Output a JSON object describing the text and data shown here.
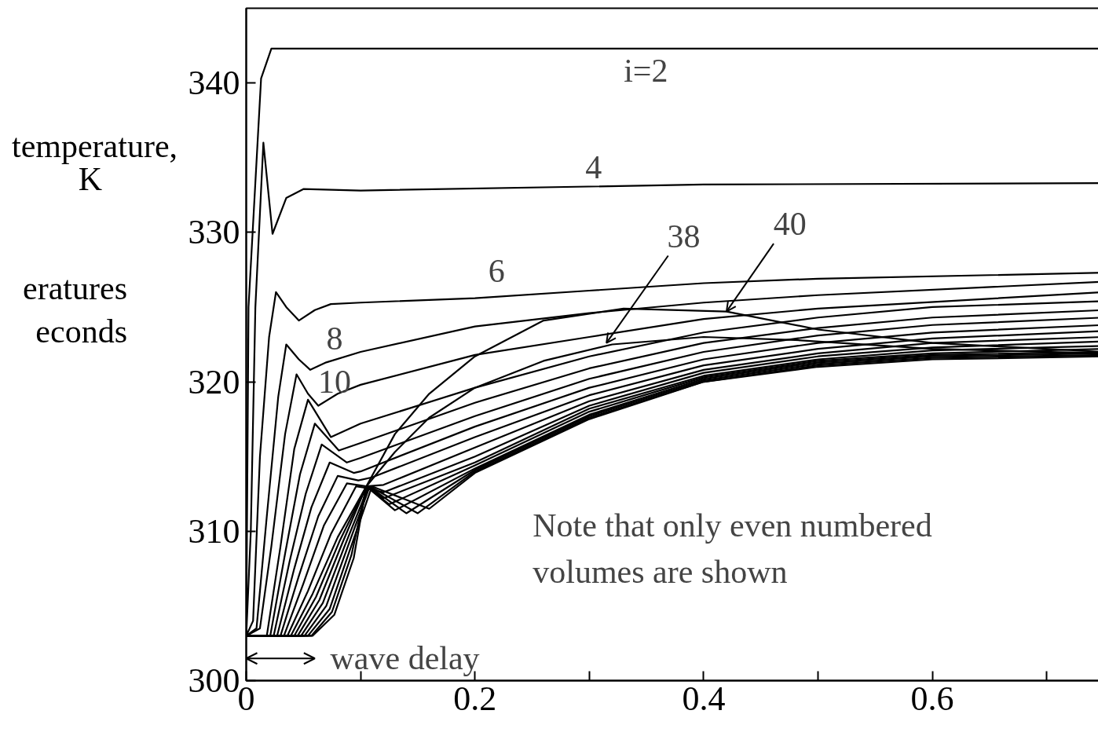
{
  "chart_data": {
    "type": "line",
    "ylabel": "temperature,\nK",
    "xlim": [
      0,
      0.75
    ],
    "ylim": [
      300,
      345
    ],
    "xticks": [
      0,
      {
        "value": 0.1,
        "label": null
      },
      0.2,
      {
        "value": 0.3,
        "label": null
      },
      0.4,
      {
        "value": 0.5,
        "label": null
      },
      0.6,
      {
        "value": 0.7,
        "label": null
      }
    ],
    "yticks": [
      300,
      310,
      320,
      330,
      340
    ],
    "grid": false,
    "annotations": [
      "Note that only even numbered\nvolumes are shown",
      "eratures\neconds",
      "i=2",
      "4",
      "6",
      "8",
      "10",
      {
        "text": "38",
        "x": 0.315,
        "y": 322.6
      },
      {
        "text": "40",
        "x": 0.42,
        "y": 324.7
      },
      "wave delay"
    ],
    "series": [
      {
        "color": "#000000",
        "x": [
          0,
          0.002,
          0.013,
          0.022,
          0.75
        ],
        "values": [
          303,
          325,
          340.3,
          342.3,
          342.3
        ]
      },
      {
        "color": "#000000",
        "x": [
          0,
          0.004,
          0.008,
          0.015,
          0.023,
          0.035,
          0.05,
          0.1,
          0.4,
          0.75
        ],
        "values": [
          303,
          310,
          325,
          336,
          329.9,
          332.3,
          332.9,
          332.8,
          333.2,
          333.3
        ]
      },
      {
        "color": "#000000",
        "x": [
          0,
          0.006,
          0.012,
          0.02,
          0.026,
          0.035,
          0.046,
          0.06,
          0.074,
          0.1,
          0.2,
          0.3,
          0.4,
          0.5,
          0.75
        ],
        "values": [
          303,
          304,
          315,
          323,
          326,
          325,
          324.1,
          324.8,
          325.2,
          325.3,
          325.6,
          326.1,
          326.6,
          326.9,
          327.3
        ]
      },
      {
        "color": "#000000",
        "x": [
          0,
          0.009,
          0.018,
          0.028,
          0.035,
          0.046,
          0.056,
          0.07,
          0.1,
          0.2,
          0.3,
          0.4,
          0.5,
          0.75
        ],
        "values": [
          303,
          303.5,
          311,
          319,
          322.5,
          321.5,
          320.8,
          321.3,
          322,
          323.7,
          324.6,
          325.3,
          325.8,
          326.7
        ]
      },
      {
        "color": "#000000",
        "x": [
          0,
          0.012,
          0.022,
          0.034,
          0.044,
          0.054,
          0.063,
          0.08,
          0.1,
          0.2,
          0.3,
          0.4,
          0.5,
          0.75
        ],
        "values": [
          303,
          303.5,
          309,
          316.5,
          320.5,
          319.2,
          318.4,
          319.2,
          319.8,
          321.8,
          323,
          324.2,
          324.9,
          326.0
        ]
      },
      {
        "color": "#000000",
        "x": [
          0,
          0.018,
          0.03,
          0.042,
          0.054,
          0.074,
          0.1,
          0.2,
          0.3,
          0.4,
          0.5,
          0.6,
          0.75
        ],
        "values": [
          303,
          303,
          309,
          315.5,
          318.8,
          316.3,
          317.2,
          319.6,
          321.7,
          323.3,
          324.3,
          325.0,
          325.4
        ]
      },
      {
        "color": "#000000",
        "x": [
          0,
          0.021,
          0.034,
          0.047,
          0.06,
          0.081,
          0.1,
          0.2,
          0.3,
          0.4,
          0.5,
          0.6,
          0.75
        ],
        "values": [
          303,
          303,
          308.5,
          313.8,
          317.2,
          315.4,
          315.9,
          318.6,
          320.9,
          322.6,
          323.6,
          324.3,
          324.8
        ]
      },
      {
        "color": "#000000",
        "x": [
          0,
          0.024,
          0.038,
          0.052,
          0.066,
          0.088,
          0.1,
          0.2,
          0.3,
          0.4,
          0.5,
          0.6,
          0.75
        ],
        "values": [
          303,
          303,
          308,
          312.5,
          315.8,
          314.6,
          314.9,
          317.7,
          320.2,
          322.0,
          323.1,
          323.8,
          324.3
        ]
      },
      {
        "color": "#000000",
        "x": [
          0,
          0.027,
          0.042,
          0.057,
          0.073,
          0.094,
          0.1,
          0.2,
          0.3,
          0.4,
          0.5,
          0.6,
          0.75
        ],
        "values": [
          303,
          303,
          307.5,
          311.6,
          314.6,
          313.9,
          314.0,
          317.0,
          319.6,
          321.5,
          322.6,
          323.3,
          323.8
        ]
      },
      {
        "color": "#000000",
        "x": [
          0,
          0.03,
          0.046,
          0.063,
          0.08,
          0.098,
          0.11,
          0.2,
          0.3,
          0.4,
          0.5,
          0.6,
          0.75
        ],
        "values": [
          303,
          303,
          307,
          311,
          313.7,
          313.4,
          313.6,
          316.3,
          319.1,
          321.1,
          322.2,
          322.9,
          323.4
        ]
      },
      {
        "color": "#000000",
        "x": [
          0,
          0.033,
          0.05,
          0.068,
          0.088,
          0.105,
          0.12,
          0.2,
          0.3,
          0.4,
          0.5,
          0.6,
          0.75
        ],
        "values": [
          303,
          303,
          306.5,
          310.4,
          313.2,
          313,
          313.1,
          315.6,
          318.7,
          320.8,
          321.9,
          322.6,
          323.0
        ]
      },
      {
        "color": "#000000",
        "x": [
          0,
          0.036,
          0.054,
          0.074,
          0.096,
          0.105,
          0.12,
          0.2,
          0.3,
          0.4,
          0.5,
          0.6,
          0.75
        ],
        "values": [
          303,
          303,
          306,
          309.8,
          313.0,
          312.9,
          312.6,
          315.0,
          318.4,
          320.6,
          321.7,
          322.3,
          322.7
        ]
      },
      {
        "color": "#000000",
        "x": [
          0,
          0.039,
          0.058,
          0.08,
          0.105,
          0.12,
          0.2,
          0.3,
          0.4,
          0.5,
          0.6,
          0.75
        ],
        "values": [
          303,
          303,
          305.8,
          309.6,
          313,
          312.2,
          314.6,
          318.2,
          320.4,
          321.5,
          322.1,
          322.4
        ]
      },
      {
        "color": "#000000",
        "x": [
          0,
          0.042,
          0.061,
          0.082,
          0.105,
          0.125,
          0.2,
          0.3,
          0.4,
          0.5,
          0.6,
          0.75
        ],
        "values": [
          303,
          303,
          305.6,
          309.4,
          313,
          311.8,
          314.4,
          318.0,
          320.3,
          321.4,
          321.9,
          322.2
        ]
      },
      {
        "color": "#000000",
        "x": [
          0,
          0.045,
          0.064,
          0.084,
          0.105,
          0.13,
          0.2,
          0.3,
          0.4,
          0.5,
          0.6,
          0.75
        ],
        "values": [
          303,
          303,
          305.4,
          309.2,
          313,
          311.4,
          314.2,
          317.8,
          320.2,
          321.3,
          321.8,
          322.0
        ]
      },
      {
        "color": "#000000",
        "x": [
          0,
          0.048,
          0.067,
          0.086,
          0.107,
          0.14,
          0.2,
          0.3,
          0.4,
          0.5,
          0.6,
          0.75
        ],
        "values": [
          303,
          303,
          305.2,
          309,
          313,
          311.2,
          314.1,
          317.7,
          320.1,
          321.2,
          321.7,
          321.9
        ]
      },
      {
        "color": "#000000",
        "x": [
          0,
          0.051,
          0.07,
          0.088,
          0.108,
          0.15,
          0.2,
          0.3,
          0.4,
          0.5,
          0.6,
          0.75
        ],
        "values": [
          303,
          303,
          305,
          308.8,
          313,
          311.2,
          314.0,
          317.6,
          320.0,
          321.1,
          321.6,
          321.8
        ]
      },
      {
        "color": "#000000",
        "x": [
          0,
          0.054,
          0.073,
          0.09,
          0.11,
          0.16,
          0.2,
          0.3,
          0.4,
          0.5,
          0.6,
          0.75
        ],
        "values": [
          303,
          303,
          304.8,
          308.6,
          313,
          311.5,
          313.9,
          317.5,
          320.0,
          321.0,
          321.5,
          321.7
        ]
      },
      {
        "color": "#000000",
        "x": [
          0,
          0.057,
          0.075,
          0.092,
          0.105,
          0.13,
          0.16,
          0.2,
          0.26,
          0.32,
          0.4,
          0.48,
          0.6,
          0.75
        ],
        "values": [
          303,
          303,
          304.6,
          308.4,
          313,
          315.3,
          317.6,
          319.6,
          321.4,
          322.5,
          323.0,
          322.8,
          322.2,
          321.9
        ]
      },
      {
        "color": "#000000",
        "x": [
          0,
          0.058,
          0.077,
          0.094,
          0.105,
          0.13,
          0.16,
          0.2,
          0.26,
          0.33,
          0.42,
          0.5,
          0.6,
          0.75
        ],
        "values": [
          303,
          303,
          304.4,
          308.2,
          313,
          316.5,
          319.2,
          321.7,
          324.1,
          324.9,
          324.7,
          323.5,
          322.6,
          322.0
        ]
      }
    ]
  }
}
